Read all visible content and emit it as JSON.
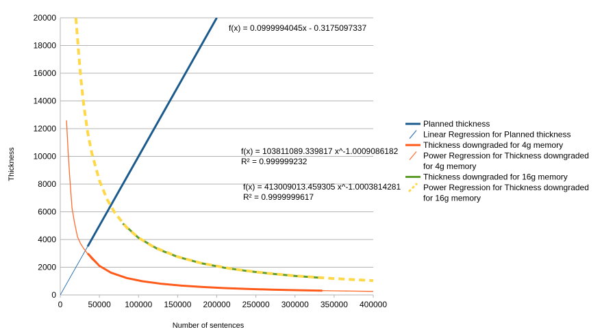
{
  "chart_data": {
    "type": "line",
    "xlabel": "Number of sentences",
    "ylabel": "Thickness",
    "xlim": [
      0,
      400000
    ],
    "ylim": [
      0,
      20000
    ],
    "x_ticks": [
      "0",
      "50000",
      "100000",
      "150000",
      "200000",
      "250000",
      "300000",
      "350000",
      "400000"
    ],
    "y_ticks": [
      "0",
      "2000",
      "4000",
      "6000",
      "8000",
      "10000",
      "12000",
      "14000",
      "16000",
      "18000",
      "20000"
    ],
    "grid": "horizontal",
    "legend_position": "right",
    "colors": {
      "planned": "#1b5a8c",
      "linear_reg": "#2e72b0",
      "t4g": "#ff5a1a",
      "power4g": "#ff6a2a",
      "t16g": "#5e9c2e",
      "power16g": "#ffd84a"
    },
    "series": [
      {
        "name": "Planned thickness",
        "x": [
          35000,
          50000,
          100000,
          150000,
          200000
        ],
        "y": [
          3500,
          5000,
          10000,
          15000,
          20000
        ]
      },
      {
        "name": "Linear Regression for Planned thickness",
        "x": [
          0,
          35000
        ],
        "y": [
          0,
          3500
        ]
      },
      {
        "name": "Thickness downgraded for 4g memory",
        "x": [
          35000,
          50000,
          65000,
          85000,
          105000,
          130000,
          155000,
          180000,
          210000,
          240000,
          270000,
          300000,
          335000
        ],
        "y": [
          3000,
          2100,
          1600,
          1220,
          990,
          800,
          670,
          580,
          495,
          430,
          385,
          345,
          310
        ]
      },
      {
        "name": "Power Regression for Thickness downgraded for 4g memory",
        "fit": {
          "a": 103811089.339817,
          "b": -1.0009086182
        },
        "x": [
          8000,
          10000,
          12000,
          15000,
          18000,
          22000,
          26000,
          30000,
          35000,
          40000,
          50000,
          65000,
          85000,
          110000,
          140000,
          180000,
          230000,
          290000,
          350000,
          400000
        ],
        "y": [
          12600,
          10400,
          8600,
          6300,
          5270,
          4200,
          3700,
          3350,
          2970,
          2600,
          2080,
          1600,
          1220,
          940,
          740,
          575,
          450,
          357,
          296,
          259
        ]
      },
      {
        "name": "Thickness downgraded for 16g memory",
        "x": [
          80000,
          100000,
          125000,
          150000,
          180000,
          210000,
          240000,
          270000,
          300000,
          335000
        ],
        "y": [
          5150,
          4120,
          3300,
          2750,
          2290,
          1960,
          1720,
          1530,
          1375,
          1230
        ]
      },
      {
        "name": "Power Regression for Thickness downgraded for 16g memory",
        "fit": {
          "a": 413009013.459305,
          "b": -1.0003814281
        },
        "x": [
          20000,
          23000,
          26000,
          30000,
          35000,
          40000,
          50000,
          60000,
          70000,
          85000,
          100000,
          120000,
          150000,
          180000,
          220000,
          260000,
          300000,
          350000,
          400000
        ],
        "y": [
          20000,
          17800,
          15800,
          13700,
          11750,
          10300,
          8260,
          6880,
          5900,
          4860,
          4130,
          3440,
          2755,
          2296,
          1878,
          1590,
          1378,
          1181,
          1034
        ]
      }
    ],
    "annotations": [
      {
        "text": "f(x) = 0.0999994045x - 0.3175097337"
      },
      {
        "text": "f(x) = 103811089.339817 x^-1.0009086182"
      },
      {
        "text": "R² = 0.999999232"
      },
      {
        "text": "f(x) = 413009013.459305 x^-1.0003814281"
      },
      {
        "text": "R² = 0.9999999617"
      }
    ],
    "legend": [
      {
        "lines": [
          "Planned thickness"
        ],
        "color": "#1b5a8c",
        "marker": "thick-line"
      },
      {
        "lines": [
          "Linear Regression for Planned thickness"
        ],
        "color": "#2e72b0",
        "marker": "thin-diagonal"
      },
      {
        "lines": [
          "Thickness downgraded for 4g memory"
        ],
        "color": "#ff5a1a",
        "marker": "thick-line"
      },
      {
        "lines": [
          "Power Regression for Thickness downgraded",
          "for 4g memory"
        ],
        "color": "#ff6a2a",
        "marker": "thin-diagonal"
      },
      {
        "lines": [
          "Thickness downgraded for 16g memory"
        ],
        "color": "#5e9c2e",
        "marker": "thick-line"
      },
      {
        "lines": [
          "Power Regression for Thickness downgraded",
          "for 16g memory"
        ],
        "color": "#ffd84a",
        "marker": "dashed-diagonal"
      }
    ]
  }
}
